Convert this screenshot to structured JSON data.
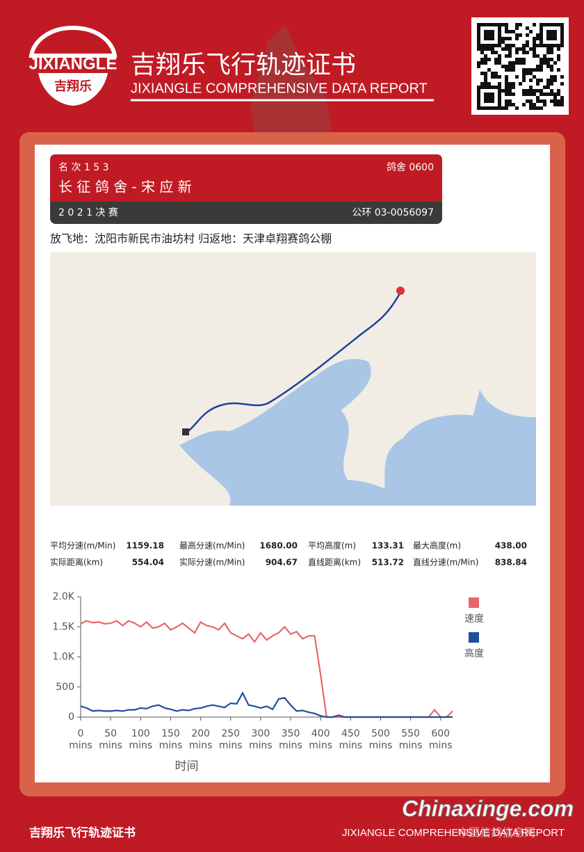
{
  "header": {
    "logo_text": "JIXIANGLE",
    "logo_sub": "吉翔乐",
    "title": "吉翔乐飞行轨迹证书",
    "subtitle": "JIXIANGLE COMPREHENSIVE DATA REPORT"
  },
  "card": {
    "rank": "名 次  1 5 3",
    "loft": "鸽舍 0600",
    "name": "长 征 鸽 舍 - 宋 应 新",
    "race": "2 0 2 1 决 赛",
    "ring": "公环 03-0056097"
  },
  "route": "放飞地：沈阳市新民市油坊村   归返地：天津卓翔赛鸽公棚",
  "stats": [
    [
      [
        "平均分速(m/Min)",
        "1159.18"
      ],
      [
        "最高分速(m/Min)",
        "1680.00"
      ],
      [
        "平均高度(m)",
        "133.31"
      ],
      [
        "最大高度(m)",
        "438.00"
      ]
    ],
    [
      [
        "实际距离(km)",
        "554.04"
      ],
      [
        "实际分速(m/Min)",
        "904.67"
      ],
      [
        "直线距离(km)",
        "513.72"
      ],
      [
        "直线分速(m/Min)",
        "838.84"
      ]
    ]
  ],
  "chart_data": {
    "type": "line",
    "x_label": "时间",
    "x": [
      0,
      10,
      20,
      30,
      40,
      50,
      60,
      70,
      80,
      90,
      100,
      110,
      120,
      130,
      140,
      150,
      160,
      170,
      180,
      190,
      200,
      210,
      220,
      230,
      240,
      250,
      260,
      270,
      280,
      290,
      300,
      310,
      320,
      330,
      340,
      350,
      360,
      370,
      380,
      390,
      400,
      410,
      420,
      430,
      440,
      450,
      460,
      470,
      480,
      490,
      500,
      510,
      520,
      530,
      540,
      550,
      560,
      570,
      580,
      590,
      600,
      610,
      620
    ],
    "series": [
      {
        "name": "速度",
        "color": "#e8666b",
        "values": [
          1550,
          1600,
          1570,
          1580,
          1550,
          1560,
          1600,
          1520,
          1600,
          1560,
          1500,
          1580,
          1480,
          1500,
          1560,
          1450,
          1500,
          1560,
          1480,
          1400,
          1580,
          1520,
          1500,
          1450,
          1560,
          1400,
          1350,
          1300,
          1380,
          1250,
          1400,
          1280,
          1350,
          1400,
          1500,
          1380,
          1420,
          1300,
          1350,
          1350,
          700,
          0,
          0,
          0,
          0,
          0,
          0,
          0,
          0,
          0,
          0,
          0,
          0,
          0,
          0,
          0,
          0,
          0,
          0,
          120,
          0,
          0,
          100
        ]
      },
      {
        "name": "高度",
        "color": "#1f4e9c",
        "values": [
          180,
          150,
          100,
          110,
          100,
          100,
          110,
          100,
          120,
          120,
          150,
          140,
          180,
          200,
          150,
          130,
          100,
          120,
          110,
          140,
          150,
          180,
          200,
          180,
          160,
          230,
          220,
          400,
          200,
          180,
          150,
          180,
          130,
          300,
          320,
          200,
          100,
          110,
          80,
          60,
          20,
          0,
          0,
          30,
          0,
          0,
          0,
          0,
          0,
          0,
          0,
          0,
          0,
          0,
          0,
          0,
          0,
          0,
          0,
          0,
          0,
          0,
          0
        ]
      }
    ],
    "xlim": [
      0,
      620
    ],
    "xticks": [
      {
        "value": 0,
        "label": "0 mins"
      },
      {
        "value": 50,
        "label": "50 mins"
      },
      {
        "value": 100,
        "label": "100 mins"
      },
      {
        "value": 150,
        "label": "150 mins"
      },
      {
        "value": 200,
        "label": "200 mins"
      },
      {
        "value": 250,
        "label": "250 mins"
      },
      {
        "value": 300,
        "label": "300 mins"
      },
      {
        "value": 350,
        "label": "350 mins"
      },
      {
        "value": 400,
        "label": "400 mins"
      },
      {
        "value": 450,
        "label": "450 mins"
      },
      {
        "value": 500,
        "label": "500 mins"
      },
      {
        "value": 550,
        "label": "550 mins"
      },
      {
        "value": 600,
        "label": "600 mins"
      }
    ],
    "ylim": [
      0,
      2000
    ],
    "yticks": [
      0,
      500,
      {
        "value": 1000,
        "label": "1.0K"
      },
      {
        "value": 1500,
        "label": "1.5K"
      },
      {
        "value": 2000,
        "label": "2.0K"
      }
    ],
    "grid": false
  },
  "footer": {
    "left": "吉翔乐飞行轨迹证书",
    "right": "JIXIANGLE COMPREHENSIVE DATA REPORT"
  },
  "watermark": {
    "site": "Chinaxinge.com",
    "cn": "中国信鸽信息网"
  }
}
